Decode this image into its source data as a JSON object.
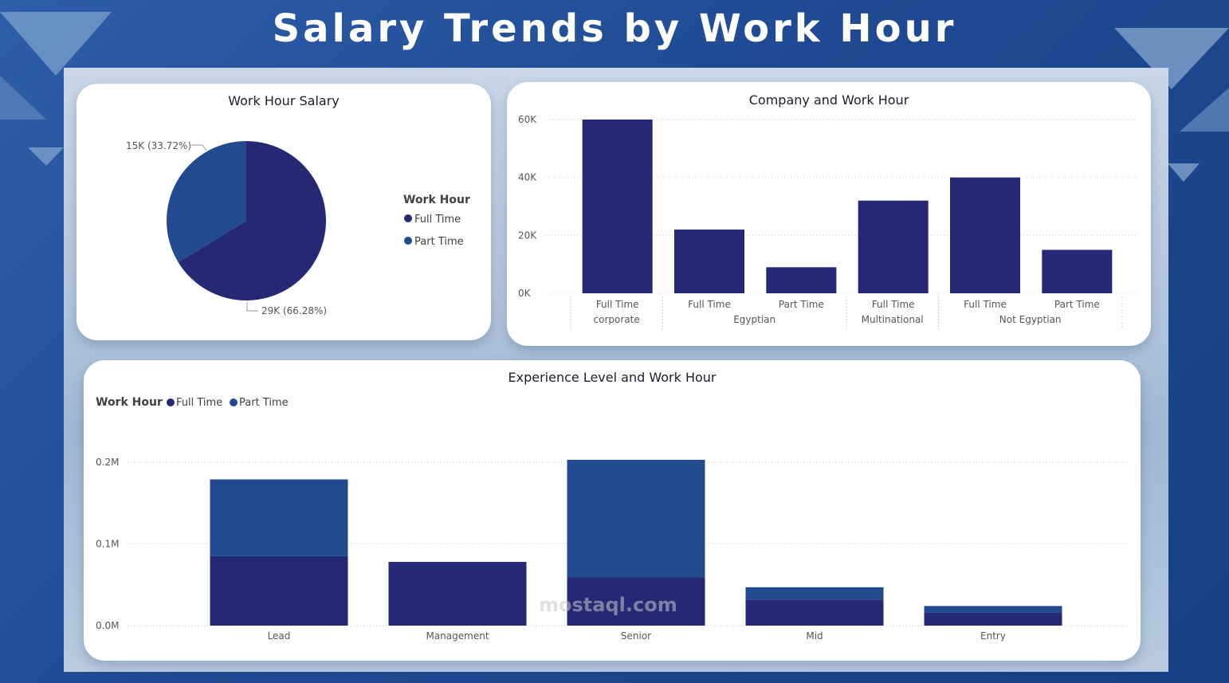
{
  "page": {
    "title": "Salary Trends by Work Hour",
    "watermark": "mostaql.com"
  },
  "colors": {
    "full_time": "#252875",
    "part_time": "#224a90",
    "background": "#1f4a93",
    "card": "#ffffff"
  },
  "pie_chart": {
    "title": "Work Hour Salary",
    "legend_title": "Work Hour",
    "labels": {
      "part": "15K (33.72%)",
      "full": "29K (66.28%)"
    }
  },
  "company_chart": {
    "title": "Company and Work Hour",
    "y_ticks": [
      "0K",
      "20K",
      "40K",
      "60K"
    ]
  },
  "experience_chart": {
    "title": "Experience Level and Work Hour",
    "legend_title": "Work Hour",
    "y_ticks": [
      "0.0M",
      "0.1M",
      "0.2M"
    ]
  },
  "chart_data": [
    {
      "type": "pie",
      "title": "Work Hour Salary",
      "legend_title": "Work Hour",
      "slices": [
        {
          "label": "Full Time",
          "value": 29000,
          "percent": 66.28
        },
        {
          "label": "Part Time",
          "value": 15000,
          "percent": 33.72
        }
      ],
      "legend_position": "right"
    },
    {
      "type": "bar",
      "title": "Company and Work Hour",
      "ylim": [
        0,
        60000
      ],
      "grid": true,
      "categories": [
        {
          "work_hour": "Full Time",
          "company": "corporate",
          "value": 60000
        },
        {
          "work_hour": "Full Time",
          "company": "Egyptian",
          "value": 22000
        },
        {
          "work_hour": "Part Time",
          "company": "Egyptian",
          "value": 9000
        },
        {
          "work_hour": "Full Time",
          "company": "Multinational",
          "value": 32000
        },
        {
          "work_hour": "Full Time",
          "company": "Not Egyptian",
          "value": 40000
        },
        {
          "work_hour": "Part Time",
          "company": "Not Egyptian",
          "value": 15000
        }
      ],
      "groups": [
        "corporate",
        "Egyptian",
        "Multinational",
        "Not Egyptian"
      ]
    },
    {
      "type": "bar",
      "stacked": true,
      "title": "Experience Level and Work Hour",
      "legend_title": "Work Hour",
      "legend_position": "top-left",
      "ylim": [
        0,
        0.2
      ],
      "y_unit": "M",
      "grid": true,
      "categories": [
        "Lead",
        "Management",
        "Senior",
        "Mid",
        "Entry"
      ],
      "series": [
        {
          "name": "Full Time",
          "values": [
            0.085,
            0.078,
            0.059,
            0.032,
            0.016
          ]
        },
        {
          "name": "Part Time",
          "values": [
            0.094,
            0.0,
            0.144,
            0.015,
            0.008
          ]
        }
      ]
    }
  ]
}
